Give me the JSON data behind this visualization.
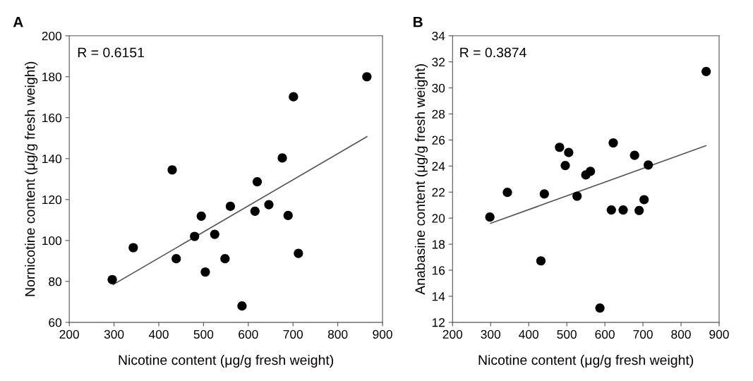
{
  "chart_data": [
    {
      "type": "scatter",
      "xlabel": "Nicotine content (μg/g fresh weight)",
      "ylabel": "Nornicotine content (μg/g fresh weight)",
      "annotations": [
        "A",
        "R = 0.6151"
      ],
      "xlim": [
        200,
        900
      ],
      "xticks": [
        200,
        300,
        400,
        500,
        600,
        700,
        800,
        900
      ],
      "ylim": [
        60,
        200
      ],
      "yticks": [
        60,
        80,
        100,
        120,
        140,
        160,
        180,
        200
      ],
      "grid": false,
      "series": [
        {
          "marker": "circle",
          "color": "#000000",
          "x": [
            296,
            343,
            430,
            439,
            480,
            495,
            504,
            525,
            548,
            560,
            586,
            615,
            620,
            646,
            676,
            689,
            701,
            712,
            865
          ],
          "values": [
            80.9,
            96.5,
            134.5,
            91.1,
            102,
            111.9,
            84.6,
            103,
            91.1,
            116.7,
            68,
            114.3,
            128.7,
            117.5,
            140.3,
            112.2,
            170.2,
            93.7,
            180
          ]
        },
        {
          "type": "line",
          "color": "#555555",
          "x": [
            298,
            865
          ],
          "values": [
            78.4,
            150.7
          ]
        }
      ]
    },
    {
      "type": "scatter",
      "xlabel": "Nicotine content (μg/g fresh weight)",
      "ylabel": "Anabasine content (μg/g fresh weight)",
      "annotations": [
        "B",
        "R = 0.3874"
      ],
      "xlim": [
        200,
        900
      ],
      "xticks": [
        200,
        300,
        400,
        500,
        600,
        700,
        800,
        900
      ],
      "ylim": [
        12,
        34
      ],
      "yticks": [
        12,
        14,
        16,
        18,
        20,
        22,
        24,
        26,
        28,
        30,
        32,
        34
      ],
      "grid": false,
      "series": [
        {
          "marker": "circle",
          "color": "#000000",
          "x": [
            298,
            344,
            432,
            441,
            481,
            496,
            505,
            527,
            550,
            562,
            587,
            617,
            622,
            648,
            678,
            690,
            703,
            714,
            866
          ],
          "values": [
            20.08,
            21.98,
            16.72,
            21.86,
            25.44,
            24.04,
            25.04,
            21.69,
            23.32,
            23.59,
            13.1,
            20.63,
            25.78,
            20.63,
            24.82,
            20.59,
            21.42,
            24.08,
            31.26
          ]
        },
        {
          "type": "line",
          "color": "#555555",
          "x": [
            300,
            865
          ],
          "values": [
            19.6,
            25.56
          ]
        }
      ]
    }
  ]
}
